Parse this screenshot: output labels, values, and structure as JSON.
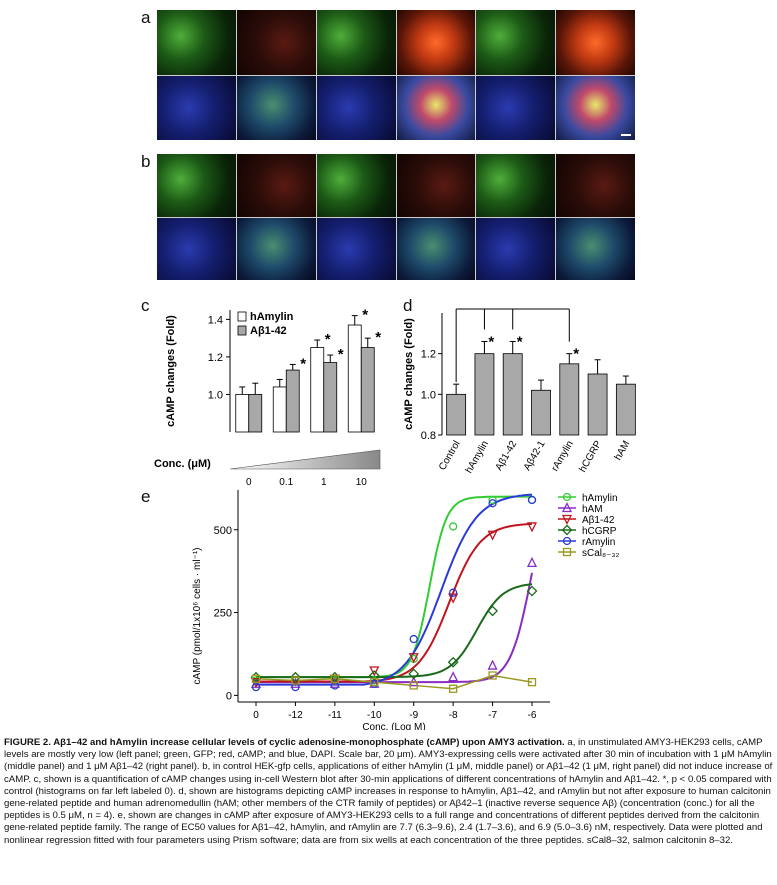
{
  "panels": {
    "a": {
      "label": "a"
    },
    "b": {
      "label": "b"
    },
    "c": {
      "label": "c"
    },
    "d": {
      "label": "d"
    },
    "e": {
      "label": "e"
    }
  },
  "micrographs": {
    "a": [
      [
        "green",
        "red",
        "green",
        "red-strong",
        "green",
        "red-strong"
      ],
      [
        "blue",
        "merge",
        "blue",
        "merge-strong",
        "blue",
        "merge-strong"
      ]
    ],
    "b": [
      [
        "green",
        "red",
        "green",
        "red",
        "green",
        "red"
      ],
      [
        "blue",
        "merge",
        "blue",
        "merge",
        "blue",
        "merge"
      ]
    ]
  },
  "chart_data": [
    {
      "id": "c",
      "type": "bar",
      "ylabel": "cAMP changes (Fold)",
      "ylim": [
        0.8,
        1.45
      ],
      "yticks": [
        "1.0",
        "1.2",
        "1.4"
      ],
      "ytick_values": [
        1.0,
        1.2,
        1.4
      ],
      "categories": [
        "0",
        "0.1",
        "1",
        "10"
      ],
      "xlabel": "Conc. (μM)",
      "series": [
        {
          "name": "hAmylin",
          "color": "#ffffff",
          "values": [
            1.0,
            1.04,
            1.25,
            1.37
          ],
          "errors": [
            0.04,
            0.04,
            0.04,
            0.05
          ],
          "star": [
            false,
            false,
            true,
            true
          ]
        },
        {
          "name": "Aβ1-42",
          "color": "#a8a8a8",
          "values": [
            1.0,
            1.13,
            1.17,
            1.25
          ],
          "errors": [
            0.06,
            0.03,
            0.04,
            0.05
          ],
          "star": [
            false,
            true,
            true,
            true
          ]
        }
      ],
      "legend": "top-left"
    },
    {
      "id": "d",
      "type": "bar",
      "ylabel": "cAMP changes (Fold)",
      "ylim": [
        0.8,
        1.4
      ],
      "yticks": [
        "0.8",
        "1.0",
        "1.2"
      ],
      "ytick_values": [
        0.8,
        1.0,
        1.2
      ],
      "categories": [
        "Control",
        "hAmylin",
        "Aβ1-42",
        "Aβ42-1",
        "rAmylin",
        "hCGRP",
        "hAM"
      ],
      "values": [
        1.0,
        1.2,
        1.2,
        1.02,
        1.15,
        1.1,
        1.05
      ],
      "errors": [
        0.05,
        0.06,
        0.06,
        0.05,
        0.05,
        0.07,
        0.04
      ],
      "star": [
        false,
        true,
        true,
        false,
        true,
        false,
        false
      ],
      "color": "#a8a8a8"
    },
    {
      "id": "e",
      "type": "line",
      "ylabel": "cAMP (pmol/1x10⁶ cells · ml⁻¹)",
      "xlabel": "Conc. (Log M)",
      "xticks": [
        "0",
        "-12",
        "-11",
        "-10",
        "-9",
        "-8",
        "-7",
        "-6"
      ],
      "yticks": [
        "0",
        "250",
        "500"
      ],
      "ytick_values": [
        0,
        250,
        500
      ],
      "ylim": [
        -20,
        620
      ],
      "series": [
        {
          "name": "hAmylin",
          "color": "#33cc33",
          "marker": "circle",
          "points": [
            [
              0,
              45
            ],
            [
              -12,
              45
            ],
            [
              -11,
              45
            ],
            [
              -10,
              45
            ],
            [
              -9,
              110
            ],
            [
              -8,
              510
            ],
            [
              -7,
              590
            ],
            [
              -6,
              590
            ]
          ],
          "fit": [
            55,
            600,
            -8.6,
            2.0
          ]
        },
        {
          "name": "hAM",
          "color": "#8a2bc2",
          "marker": "triangle",
          "points": [
            [
              0,
              35
            ],
            [
              -12,
              35
            ],
            [
              -11,
              35
            ],
            [
              -10,
              35
            ],
            [
              -9,
              40
            ],
            [
              -8,
              55
            ],
            [
              -7,
              90
            ],
            [
              -6,
              400
            ]
          ],
          "fit": [
            40,
            700,
            -6.0,
            1.6
          ]
        },
        {
          "name": "Aβ1-42",
          "color": "#c0141e",
          "marker": "triangle-down",
          "points": [
            [
              0,
              40
            ],
            [
              -12,
              45
            ],
            [
              -11,
              50
            ],
            [
              -10,
              75
            ],
            [
              -9,
              115
            ],
            [
              -8,
              295
            ],
            [
              -7,
              485
            ],
            [
              -6,
              510
            ]
          ],
          "fit": [
            40,
            520,
            -8.1,
            1.1
          ]
        },
        {
          "name": "hCGRP",
          "color": "#1a6a1a",
          "marker": "diamond",
          "points": [
            [
              0,
              55
            ],
            [
              -12,
              55
            ],
            [
              -11,
              55
            ],
            [
              -10,
              60
            ],
            [
              -9,
              65
            ],
            [
              -8,
              100
            ],
            [
              -7,
              255
            ],
            [
              -6,
              315
            ]
          ],
          "fit": [
            55,
            340,
            -7.4,
            1.3
          ]
        },
        {
          "name": "rAmylin",
          "color": "#2a3ad6",
          "marker": "circle",
          "points": [
            [
              0,
              25
            ],
            [
              -12,
              25
            ],
            [
              -11,
              30
            ],
            [
              -10,
              35
            ],
            [
              -9,
              170
            ],
            [
              -8,
              310
            ],
            [
              -7,
              580
            ],
            [
              -6,
              590
            ]
          ],
          "fit": [
            25,
            610,
            -8.3,
            0.95
          ]
        },
        {
          "name": "sCal₈₋₃₂",
          "color": "#9a9a20",
          "marker": "square",
          "points": [
            [
              0,
              50
            ],
            [
              -12,
              45
            ],
            [
              -11,
              50
            ],
            [
              -10,
              40
            ],
            [
              -9,
              30
            ],
            [
              -8,
              20
            ],
            [
              -7,
              60
            ],
            [
              -6,
              40
            ]
          ]
        }
      ],
      "legend": "top-right"
    }
  ],
  "caption": {
    "head": "FIGURE 2. ",
    "title": "Aβ1–42 and hAmylin increase cellular levels of cyclic adenosine-monophosphate (cAMP) upon AMY3 activation.",
    "body": " a, in unstimulated AMY3-HEK293 cells, cAMP levels are mostly very low (left panel; green, GFP; red, cAMP; and blue, DAPI. Scale bar, 20 μm). AMY3-expressing cells were activated after 30 min of incubation with 1 μM hAmylin (middle panel) and 1 μM Aβ1–42 (right panel). b, in control HEK-gfp cells, applications of either hAmylin (1 μM, middle panel) or Aβ1–42 (1 μM, right panel) did not induce increase of cAMP. c, shown is a quantification of cAMP changes using in-cell Western blot after 30-min applications of different concentrations of hAmylin and Aβ1–42. *, p < 0.05 compared with control (histograms on far left labeled 0). d, shown are histograms depicting cAMP increases in response to hAmylin, Aβ1–42, and rAmylin but not after exposure to human calcitonin gene-related peptide and human adrenomedullin (hAM; other members of the CTR family of peptides) or Aβ42–1 (inactive reverse sequence Aβ) (concentration (conc.) for all the peptides is 0.5 μM, n = 4). e, shown are changes in cAMP after exposure of AMY3-HEK293 cells to a full range and concentrations of different peptides derived from the calcitonin gene-related peptide family. The range of EC50 values for Aβ1–42, hAmylin, and rAmylin are 7.7 (6.3–9.6), 2.4 (1.7–3.6), and 6.9 (5.0–3.6) nM, respectively. Data were plotted and nonlinear regression fitted with four parameters using Prism software; data are from six wells at each concentration of the three peptides. sCal8–32, salmon calcitonin 8–32."
  }
}
